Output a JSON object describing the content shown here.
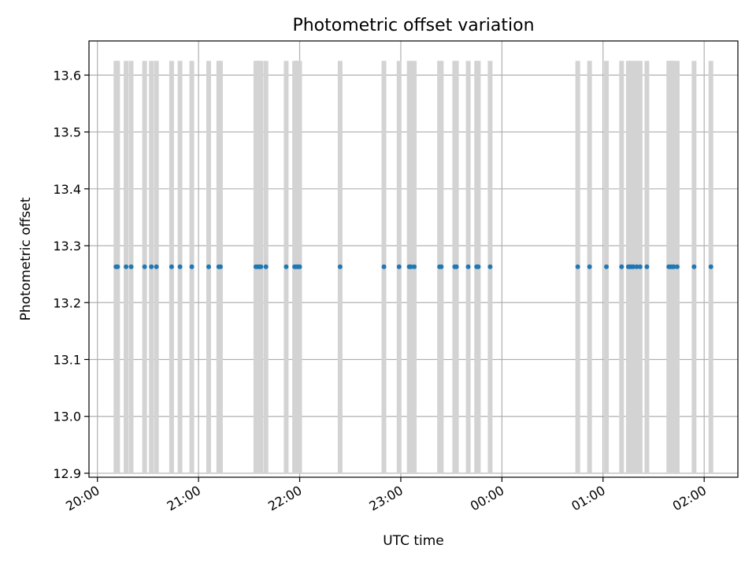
{
  "chart_data": {
    "type": "scatter",
    "title": "Photometric offset variation",
    "xlabel": "UTC time",
    "ylabel": "Photometric offset",
    "x_axis": "time (UTC, evening to next morning)",
    "xlim": [
      "19:55",
      "02:20"
    ],
    "ylim": [
      12.893,
      13.66
    ],
    "x_ticks": [
      "20:00",
      "21:00",
      "22:00",
      "23:00",
      "00:00",
      "01:00",
      "02:00"
    ],
    "y_ticks": [
      "12.9",
      "13.0",
      "13.1",
      "13.2",
      "13.3",
      "13.4",
      "13.5",
      "13.6"
    ],
    "grid": true,
    "point_color": "#1f77b4",
    "bar_color": "#d3d3d3",
    "bar_range": [
      12.9,
      13.625
    ],
    "series": [
      {
        "values_y": 13.263,
        "x": [
          "20:11",
          "20:12",
          "20:17",
          "20:20",
          "20:28",
          "20:32",
          "20:35",
          "20:44",
          "20:49",
          "20:56",
          "21:06",
          "21:12",
          "21:13",
          "21:34",
          "21:35",
          "21:36",
          "21:37",
          "21:40",
          "21:52",
          "21:57",
          "21:58",
          "21:59",
          "22:00",
          "22:24",
          "22:50",
          "22:59",
          "23:05",
          "23:06",
          "23:08",
          "23:23",
          "23:24",
          "23:32",
          "23:33",
          "23:40",
          "23:45",
          "23:46",
          "23:53",
          "00:45",
          "00:52",
          "01:02",
          "01:11",
          "01:15",
          "01:16",
          "01:17",
          "01:18",
          "01:20",
          "01:22",
          "01:26",
          "01:39",
          "01:40",
          "01:41",
          "01:42",
          "01:44",
          "01:54",
          "02:04"
        ]
      }
    ]
  }
}
